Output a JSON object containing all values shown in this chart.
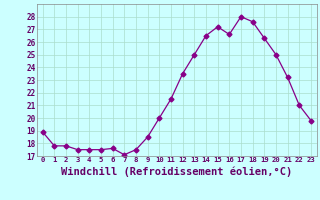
{
  "x": [
    0,
    1,
    2,
    3,
    4,
    5,
    6,
    7,
    8,
    9,
    10,
    11,
    12,
    13,
    14,
    15,
    16,
    17,
    18,
    19,
    20,
    21,
    22,
    23
  ],
  "y": [
    18.9,
    17.8,
    17.8,
    17.5,
    17.5,
    17.5,
    17.6,
    17.1,
    17.5,
    18.5,
    20.0,
    21.5,
    23.5,
    25.0,
    26.5,
    27.2,
    26.6,
    28.0,
    27.6,
    26.3,
    25.0,
    23.2,
    21.0,
    19.8
  ],
  "line_color": "#880088",
  "marker": "D",
  "markersize": 2.5,
  "bg_color": "#ccffff",
  "grid_color": "#aaddcc",
  "xlabel": "Windchill (Refroidissement éolien,°C)",
  "ylim_min": 17,
  "ylim_max": 29,
  "yticks": [
    17,
    18,
    19,
    20,
    21,
    22,
    23,
    24,
    25,
    26,
    27,
    28
  ],
  "xtick_labels": [
    "0",
    "1",
    "2",
    "3",
    "4",
    "5",
    "6",
    "7",
    "8",
    "9",
    "10",
    "11",
    "12",
    "13",
    "14",
    "15",
    "16",
    "17",
    "18",
    "19",
    "20",
    "21",
    "22",
    "23"
  ]
}
